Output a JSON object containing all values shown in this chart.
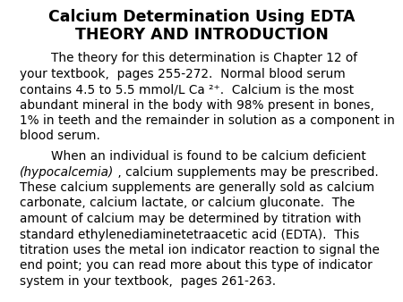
{
  "title_line1": "Calcium Determination Using EDTA",
  "title_line2": "THEORY AND INTRODUCTION",
  "title_fontsize": 12.5,
  "body_fontsize": 9.8,
  "background_color": "#ffffff",
  "text_color": "#000000",
  "p1_lines": [
    "        The theory for this determination is Chapter 12 of",
    "your textbook,  pages 255-272.  Normal blood serum",
    "contains 4.5 to 5.5 mmol/L Ca ²⁺.  Calcium is the most",
    "abundant mineral in the body with 98% present in bones,",
    "1% in teeth and the remainder in solution as a component in",
    "blood serum."
  ],
  "p2_line1_normal": "        When an individual is found to be calcium deficient",
  "p2_line2_italic": "(hypocalcemia)",
  "p2_line2_normal_after": " , calcium supplements may be prescribed.",
  "p2_rest_lines": [
    "These calcium supplements are generally sold as calcium",
    "carbonate, calcium lactate, or calcium gluconate.  The",
    "amount of calcium may be determined by titration with",
    "standard ethylenediaminetetraacetic acid (EDTA).  This",
    "titration uses the metal ion indicator reaction to signal the",
    "end point; you can read more about this type of indicator",
    "system in your textbook,  pages 261-263."
  ]
}
